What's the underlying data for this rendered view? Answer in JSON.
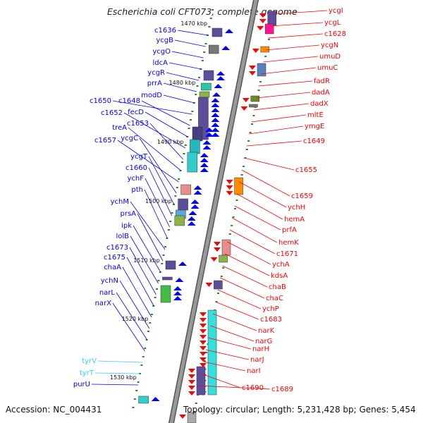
{
  "title": "Escherichia coli CFT073, complete genome",
  "accession": "Accession: NC_004431",
  "topology": "Topology: circular; Length: 5,231,428 bp; Genes: 5,454",
  "colors": {
    "forward": "#0000ff",
    "reverse": "#ff0000",
    "rna": "#33ccff",
    "backbone": "#999999",
    "tick": "#228b22"
  },
  "kbp_labels": [
    "1470 kbp",
    "1480 kbp",
    "1490 kbp",
    "1500 kbp",
    "1510 kbp",
    "1520 kbp",
    "1530 kbp"
  ],
  "left_labels": [
    "c1636",
    "ycgB",
    "ycgO",
    "ldcA",
    "ycgR",
    "prrA",
    "modD",
    "c1650",
    "c1648",
    "fecD",
    "c1652",
    "c1653",
    "treA",
    "c1657",
    "ycgC",
    "ycgT",
    "c1660",
    "ychF",
    "pth",
    "ychM",
    "prsA",
    "ipk",
    "lolB",
    "c1673",
    "c1675",
    "chaA",
    "ychN",
    "narL",
    "narX",
    "tyrV",
    "tyrT",
    "purU"
  ],
  "right_labels": [
    "ycgI",
    "ycgL",
    "c1628",
    "ycgN",
    "umuD",
    "umuC",
    "fadR",
    "dadA",
    "dadX",
    "mltE",
    "ymgE",
    "c1649",
    "c1655",
    "c1659",
    "ychH",
    "hemA",
    "prfA",
    "hemK",
    "c1671",
    "ychA",
    "kdsA",
    "chaB",
    "chaC",
    "ychP",
    "c1683",
    "narK",
    "narG",
    "narH",
    "narJ",
    "narI",
    "c1690",
    "c1689"
  ]
}
